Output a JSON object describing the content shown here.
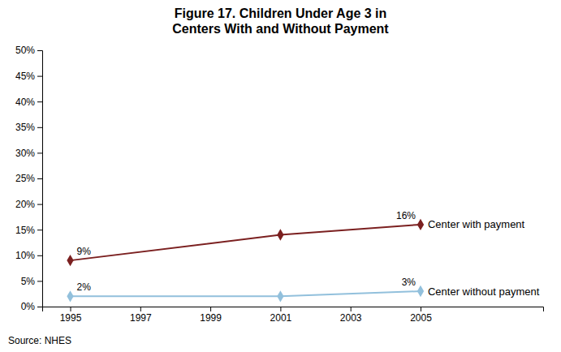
{
  "chart_data": {
    "type": "line",
    "title": "Figure 17. Children Under Age 3 in\nCenters With and Without Payment",
    "x": [
      1995,
      2001,
      2005
    ],
    "xlim": [
      1994.2,
      2008.5
    ],
    "xticks": [
      1995,
      1997,
      1999,
      2001,
      2003,
      2005
    ],
    "ylim": [
      0,
      0.5
    ],
    "yticks": [
      {
        "value": 0.0,
        "label": "0%"
      },
      {
        "value": 0.05,
        "label": "5%"
      },
      {
        "value": 0.1,
        "label": "10%"
      },
      {
        "value": 0.15,
        "label": "15%"
      },
      {
        "value": 0.2,
        "label": "20%"
      },
      {
        "value": 0.25,
        "label": "25%"
      },
      {
        "value": 0.3,
        "label": "30%"
      },
      {
        "value": 0.35,
        "label": "35%"
      },
      {
        "value": 0.4,
        "label": "40%"
      },
      {
        "value": 0.45,
        "label": "45%"
      },
      {
        "value": 0.5,
        "label": "50%"
      }
    ],
    "grid": false,
    "data_labels": true,
    "series": [
      {
        "name": "Center with payment",
        "color": "#7B2020",
        "marker": "diamond",
        "values": [
          0.09,
          0.14,
          0.16
        ],
        "value_labels": [
          "9%",
          null,
          "16%"
        ]
      },
      {
        "name": "Center without payment",
        "color": "#92C0DC",
        "marker": "diamond",
        "values": [
          0.02,
          0.02,
          0.03
        ],
        "value_labels": [
          "2%",
          null,
          "3%"
        ]
      }
    ],
    "annotations": [
      "Source: NHES"
    ]
  }
}
